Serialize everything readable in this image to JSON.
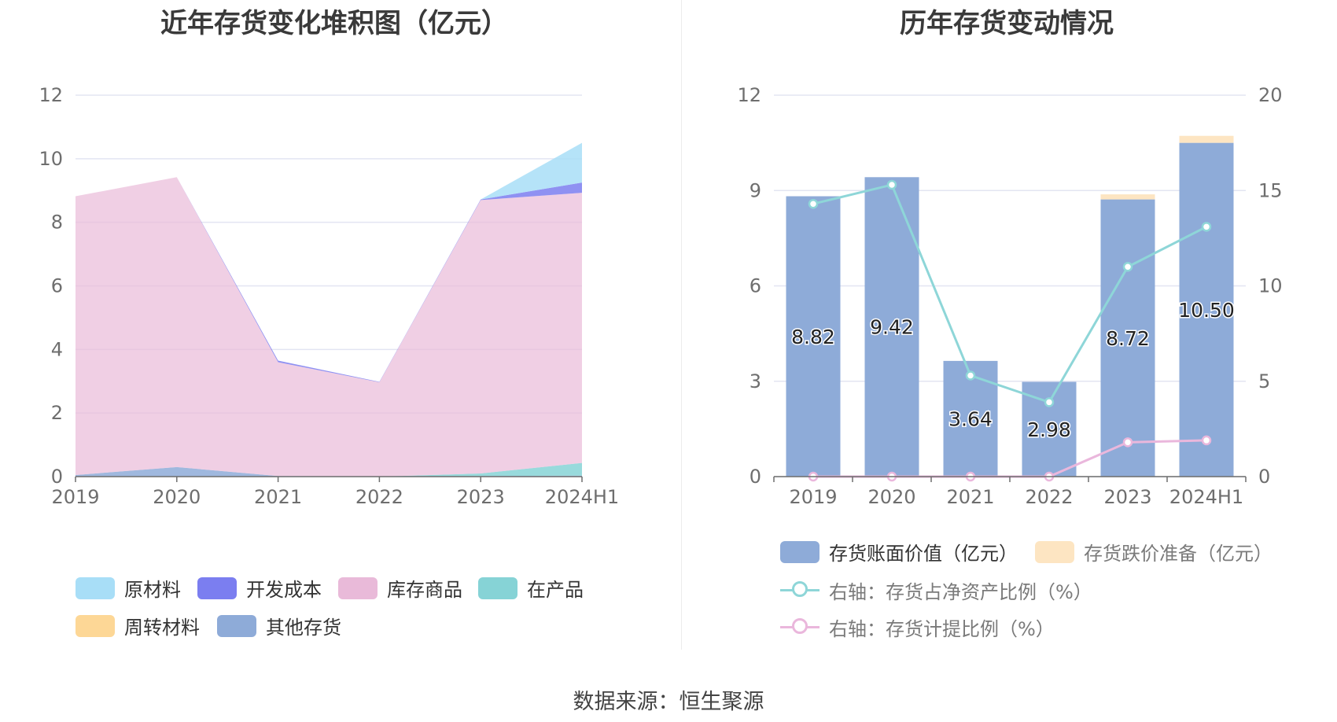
{
  "left_chart": {
    "title": "近年存货变化堆积图（亿元）",
    "legend": [
      {
        "label": "原材料",
        "color": "#a8def7"
      },
      {
        "label": "开发成本",
        "color": "#7b7ef0"
      },
      {
        "label": "库存商品",
        "color": "#e9bad9"
      },
      {
        "label": "在产品",
        "color": "#86d3d6"
      },
      {
        "label": "周转材料",
        "color": "#fdd796"
      },
      {
        "label": "其他存货",
        "color": "#8eabd8"
      }
    ]
  },
  "right_chart": {
    "title": "历年存货变动情况",
    "legend": {
      "book_value": {
        "label": "存货账面价值（亿元）",
        "color": "#8eabd8"
      },
      "impairment": {
        "label": "存货跌价准备（亿元）",
        "color": "#fde5c2"
      },
      "net_asset_ratio": {
        "label": "右轴：存货占净资产比例（%）",
        "color": "#8ed6d8"
      },
      "provision_ratio": {
        "label": "右轴：存货计提比例（%）",
        "color": "#eab7dc"
      }
    }
  },
  "source": "数据来源：恒生聚源",
  "chart_data": [
    {
      "type": "area",
      "stacked": true,
      "title": "近年存货变化堆积图（亿元）",
      "categories": [
        "2019",
        "2020",
        "2021",
        "2022",
        "2023",
        "2024H1"
      ],
      "ylim": [
        0,
        12
      ],
      "yticks": [
        0,
        2,
        4,
        6,
        8,
        10,
        12
      ],
      "grid": true,
      "legend_position": "bottom",
      "series": [
        {
          "name": "其他存货",
          "color": "#8eabd8",
          "values": [
            0.05,
            0.3,
            0.02,
            0.0,
            0.02,
            0.03
          ]
        },
        {
          "name": "周转材料",
          "color": "#fdd796",
          "values": [
            0,
            0,
            0,
            0,
            0,
            0
          ]
        },
        {
          "name": "在产品",
          "color": "#86d3d6",
          "values": [
            0.0,
            0.0,
            0.0,
            0.0,
            0.08,
            0.4
          ]
        },
        {
          "name": "库存商品",
          "color": "#e9bad9",
          "values": [
            8.77,
            9.12,
            3.58,
            2.97,
            8.6,
            8.5
          ]
        },
        {
          "name": "开发成本",
          "color": "#7b7ef0",
          "values": [
            0.0,
            0.0,
            0.05,
            0.01,
            0.02,
            0.32
          ]
        },
        {
          "name": "原材料",
          "color": "#a8def7",
          "values": [
            0.0,
            0.0,
            0.0,
            0.0,
            0.0,
            1.25
          ]
        }
      ]
    },
    {
      "type": "bar",
      "title": "历年存货变动情况",
      "categories": [
        "2019",
        "2020",
        "2021",
        "2022",
        "2023",
        "2024H1"
      ],
      "ylim": [
        0,
        12
      ],
      "yticks": [
        0,
        3,
        6,
        9,
        12
      ],
      "y2lim": [
        0,
        20
      ],
      "y2ticks": [
        0,
        5,
        10,
        15,
        20
      ],
      "grid": true,
      "legend_position": "bottom",
      "series": [
        {
          "name": "存货账面价值（亿元）",
          "type": "bar",
          "stack": "inv",
          "axis": "left",
          "color": "#8eabd8",
          "values": [
            8.82,
            9.42,
            3.64,
            2.98,
            8.72,
            10.5
          ],
          "labels": [
            "8.82",
            "9.42",
            "3.64",
            "2.98",
            "8.72",
            "10.50"
          ]
        },
        {
          "name": "存货跌价准备（亿元）",
          "type": "bar",
          "stack": "inv",
          "axis": "left",
          "color": "#fde5c2",
          "values": [
            0,
            0,
            0,
            0,
            0.16,
            0.22
          ]
        },
        {
          "name": "右轴：存货占净资产比例（%）",
          "type": "line",
          "axis": "right",
          "color": "#8ed6d8",
          "values": [
            14.3,
            15.3,
            5.3,
            3.9,
            11.0,
            13.1
          ]
        },
        {
          "name": "右轴：存货计提比例（%）",
          "type": "line",
          "axis": "right",
          "color": "#eab7dc",
          "values": [
            0,
            0,
            0,
            0,
            1.8,
            1.9
          ]
        }
      ]
    }
  ]
}
